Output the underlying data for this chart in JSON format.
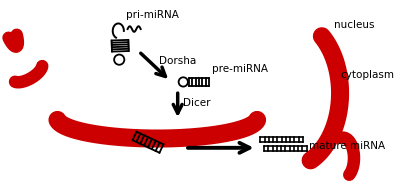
{
  "bg_color": "#ffffff",
  "label_fontsize": 7.5,
  "red_color": "#cc0000",
  "black_color": "#000000",
  "nucleus_label": "nucleus",
  "cytoplasm_label": "cytoplasm",
  "mature_mirna_label": "mature miRNA",
  "pri_mirna_label": "pri-miRNA",
  "pre_mirna_label": "pre-miRNA",
  "drosha_label": "Dorsha",
  "dicer_label": "Dicer"
}
